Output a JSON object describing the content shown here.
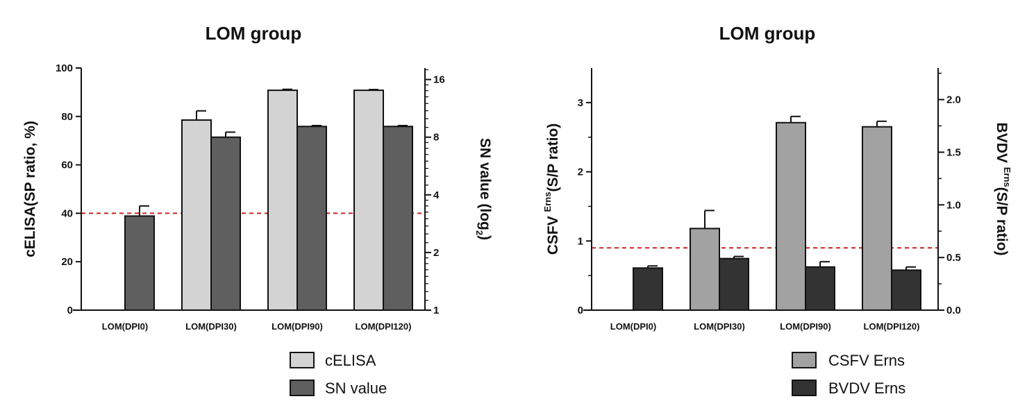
{
  "chart_data": [
    {
      "type": "bar",
      "title": "LOM group",
      "categories": [
        "LOM(DPI0)",
        "LOM(DPI30)",
        "LOM(DPI90)",
        "LOM(DPI120)"
      ],
      "ylabel": "cELISA(SP ratio, %)",
      "ylim": [
        0,
        100
      ],
      "yticks": [
        0,
        20,
        40,
        60,
        80,
        100
      ],
      "y2label": {
        "main": "SN value (log",
        "sub": "2",
        "tail": ")"
      },
      "y2scale": "log2",
      "y2lim": [
        1,
        32
      ],
      "y2ticks": [
        "1",
        "2",
        "4",
        "8",
        "16"
      ],
      "threshold": {
        "y": 40,
        "color": "#cc2222",
        "style": "dashed"
      },
      "series": [
        {
          "name": "cELISA",
          "axis": "left",
          "color": "#d3d3d3",
          "values": [
            0,
            78.5,
            90.8,
            90.8
          ],
          "errors": [
            0,
            3.8,
            0.4,
            0.3
          ]
        },
        {
          "name": "SN value",
          "axis": "right",
          "color": "#5f5f5f",
          "values": [
            3.1,
            8.0,
            9.1,
            9.1
          ],
          "errors": [
            0.4,
            0.5,
            0.1,
            0.1
          ]
        }
      ],
      "legend": "bottom-right"
    },
    {
      "type": "bar",
      "title": "LOM group",
      "categories": [
        "LOM(DPI0)",
        "LOM(DPI30)",
        "LOM(DPI90)",
        "LOM(DPI120)"
      ],
      "ylabel": {
        "main": "CSFV ",
        "sup": "Erns",
        "tail": "(S/P ratio)"
      },
      "ylim": [
        0,
        3.5
      ],
      "yticks": [
        "0",
        "1",
        "2",
        "3"
      ],
      "y2label": {
        "main": "BVDV ",
        "sup": "Erns",
        "tail": "(S/P ratio)"
      },
      "y2lim": [
        0,
        2.3
      ],
      "y2ticks": [
        "0.0",
        "0.5",
        "1.0",
        "1.5",
        "2.0"
      ],
      "threshold": {
        "y": 0.9,
        "color": "#cc2222",
        "style": "dashed"
      },
      "series": [
        {
          "name": "CSFV Erns",
          "axis": "left",
          "color": "#a2a2a2",
          "values": [
            0,
            1.18,
            2.71,
            2.65
          ],
          "errors": [
            0,
            0.26,
            0.09,
            0.08
          ]
        },
        {
          "name": "BVDV Erns",
          "axis": "right",
          "color": "#333333",
          "values": [
            0.4,
            0.49,
            0.41,
            0.38
          ],
          "errors": [
            0.02,
            0.02,
            0.05,
            0.03
          ]
        }
      ],
      "legend": "bottom-right"
    }
  ]
}
